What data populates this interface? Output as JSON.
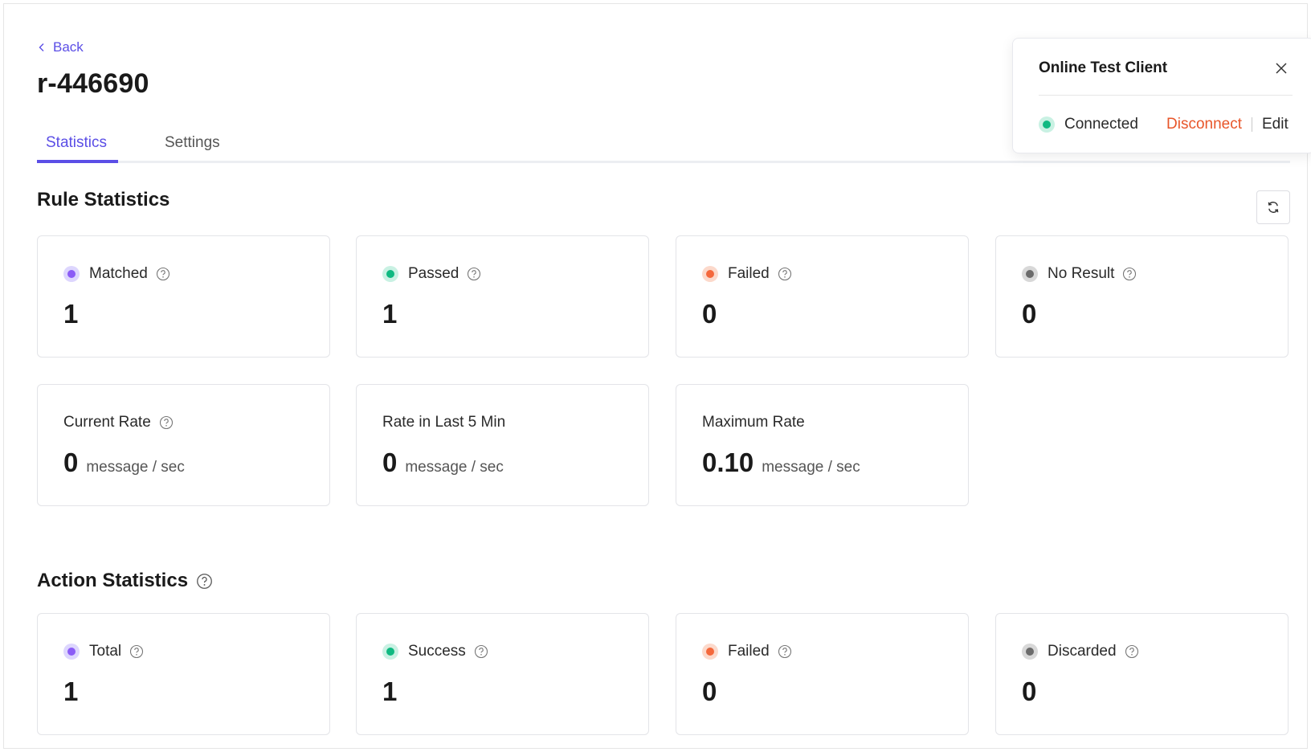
{
  "header": {
    "back_label": "Back",
    "rule_id": "r-446690"
  },
  "tabs": [
    {
      "label": "Statistics",
      "active": true
    },
    {
      "label": "Settings",
      "active": false
    }
  ],
  "rule_statistics": {
    "title": "Rule Statistics",
    "cards": [
      {
        "label": "Matched",
        "value": "1",
        "color": "#8b5cf6",
        "halo": "#ddd6fe"
      },
      {
        "label": "Passed",
        "value": "1",
        "color": "#10b981",
        "halo": "#c9f1e3"
      },
      {
        "label": "Failed",
        "value": "0",
        "color": "#f4683c",
        "halo": "#fcd9cb"
      },
      {
        "label": "No Result",
        "value": "0",
        "color": "#6b6b6b",
        "halo": "#d8d8d8"
      }
    ],
    "rates": [
      {
        "label": "Current Rate",
        "value": "0",
        "unit": "message / sec"
      },
      {
        "label": "Rate in Last 5 Min",
        "value": "0",
        "unit": "message / sec"
      },
      {
        "label": "Maximum Rate",
        "value": "0.10",
        "unit": "message / sec"
      }
    ]
  },
  "action_statistics": {
    "title": "Action Statistics",
    "cards": [
      {
        "label": "Total",
        "value": "1",
        "color": "#8b5cf6",
        "halo": "#ddd6fe"
      },
      {
        "label": "Success",
        "value": "1",
        "color": "#10b981",
        "halo": "#c9f1e3"
      },
      {
        "label": "Failed",
        "value": "0",
        "color": "#f4683c",
        "halo": "#fcd9cb"
      },
      {
        "label": "Discarded",
        "value": "0",
        "color": "#6b6b6b",
        "halo": "#d8d8d8"
      }
    ]
  },
  "test_client": {
    "title": "Online Test Client",
    "status": "Connected",
    "status_color": "#10b981",
    "disconnect_label": "Disconnect",
    "edit_label": "Edit"
  },
  "colors": {
    "accent": "#5b4ee6",
    "danger": "#e8562a"
  }
}
